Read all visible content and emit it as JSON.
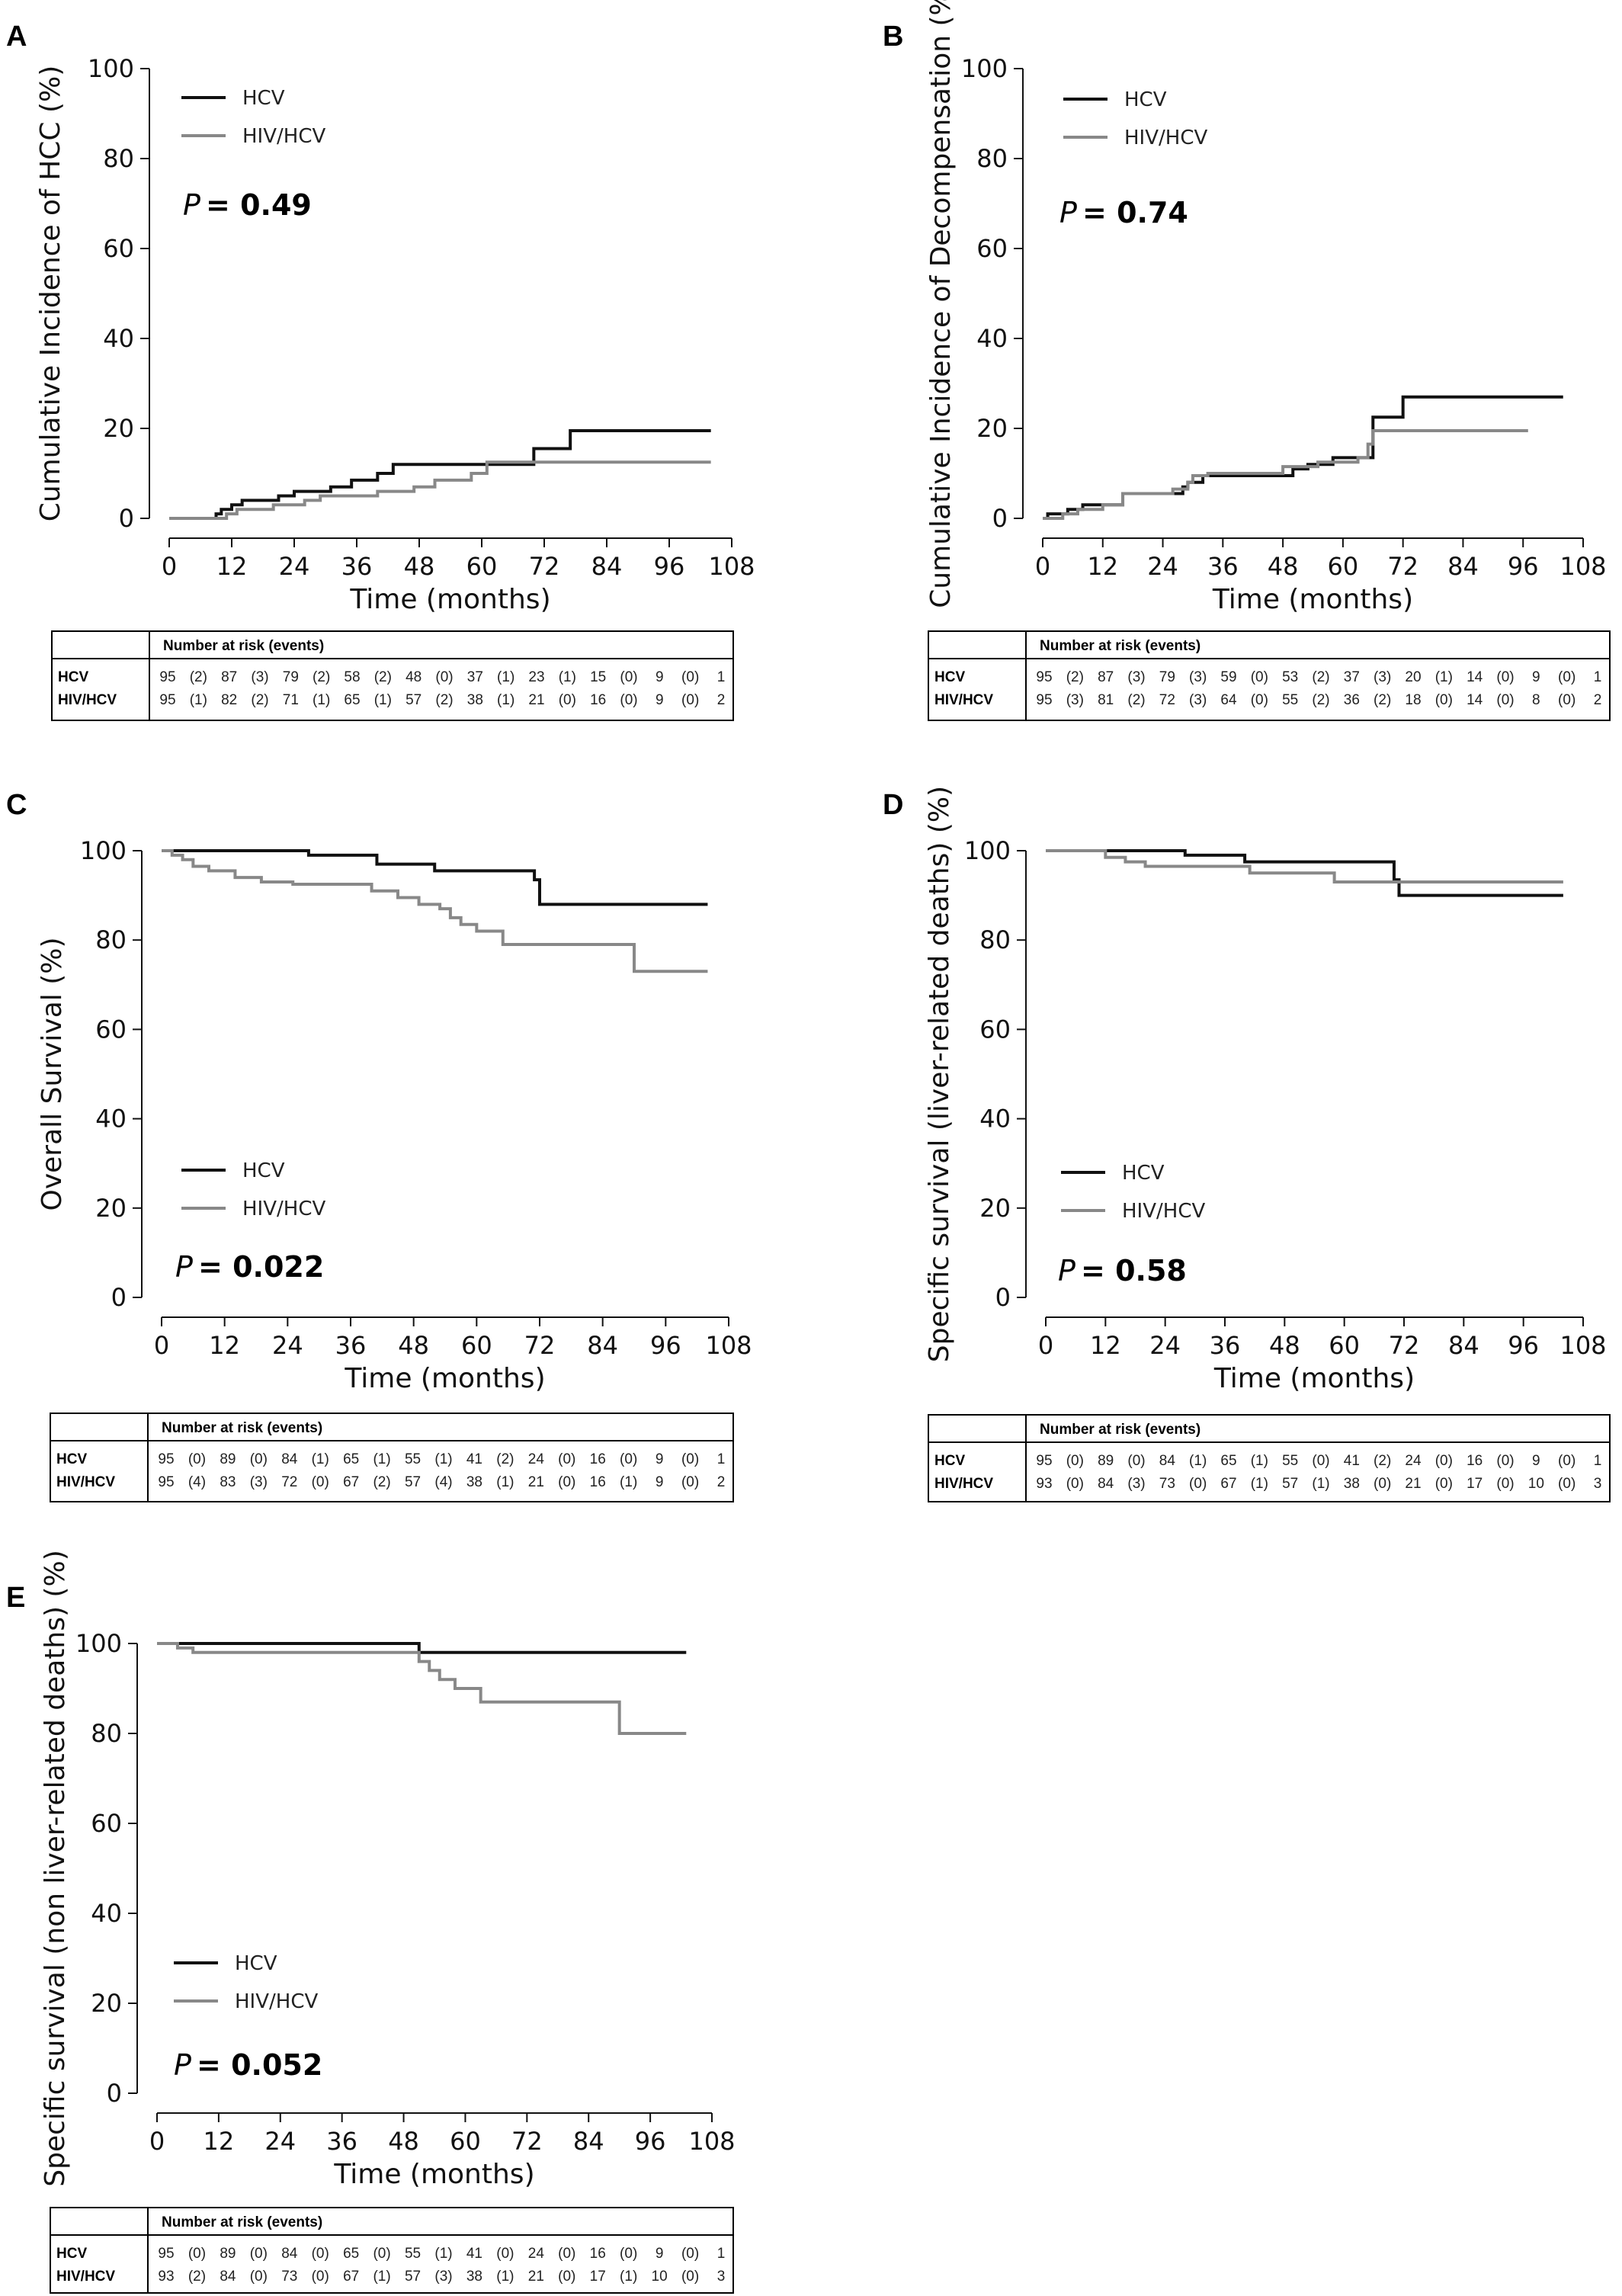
{
  "colors": {
    "hcv": "#111111",
    "hiv_hcv": "#888888",
    "axis": "#111111"
  },
  "x_axis": {
    "ticks": [
      0,
      12,
      24,
      36,
      48,
      60,
      72,
      84,
      96,
      108
    ],
    "label": "Time (months)",
    "range": [
      0,
      108
    ]
  },
  "y_axis": {
    "ticks": [
      0,
      20,
      40,
      60,
      80,
      100
    ],
    "range": [
      0,
      100
    ]
  },
  "risk_table": {
    "title": "Number at risk (events)",
    "group_labels": [
      "HCV",
      "HIV/HCV"
    ]
  },
  "chart_data": [
    {
      "type": "line",
      "letter": "A",
      "ylabel": "Cumulative Incidence of HCC (%)",
      "legend": [
        "HCV",
        "HIV/HCV"
      ],
      "p_label": "P",
      "p_value": "= 0.49",
      "series": [
        {
          "name": "HCV",
          "x": [
            0,
            9,
            10,
            12,
            14,
            21,
            24,
            31,
            35,
            40,
            43,
            48,
            60,
            70,
            77,
            104
          ],
          "y": [
            0,
            1,
            2,
            3,
            4,
            5,
            6,
            7,
            8.5,
            10,
            12,
            12,
            12,
            15.5,
            19.5,
            19.5
          ]
        },
        {
          "name": "HIV/HCV",
          "x": [
            0,
            11,
            13,
            20,
            26,
            29,
            40,
            47,
            51,
            58,
            61,
            104
          ],
          "y": [
            0,
            1,
            2,
            3,
            4,
            5,
            6,
            7,
            8.5,
            10,
            12.5,
            12.5
          ]
        }
      ],
      "risk": [
        {
          "group": "HCV",
          "values": [
            "95",
            "(2)",
            "87",
            "(3)",
            "79",
            "(2)",
            "58",
            "(2)",
            "48",
            "(0)",
            "37",
            "(1)",
            "23",
            "(1)",
            "15",
            "(0)",
            "9",
            "(0)",
            "1"
          ]
        },
        {
          "group": "HIV/HCV",
          "values": [
            "95",
            "(1)",
            "82",
            "(2)",
            "71",
            "(1)",
            "65",
            "(1)",
            "57",
            "(2)",
            "38",
            "(1)",
            "21",
            "(0)",
            "16",
            "(0)",
            "9",
            "(0)",
            "2"
          ]
        }
      ]
    },
    {
      "type": "line",
      "letter": "B",
      "ylabel": "Cumulative Incidence of Decompensation (%)",
      "legend": [
        "HCV",
        "HIV/HCV"
      ],
      "p_label": "P",
      "p_value": "= 0.74",
      "series": [
        {
          "name": "HCV",
          "x": [
            0,
            1,
            5,
            8,
            16,
            28,
            29,
            32,
            50,
            53,
            58,
            64,
            66,
            72,
            104
          ],
          "y": [
            0,
            1,
            2,
            3,
            5.5,
            7,
            8,
            9.5,
            11,
            12,
            13.5,
            13.5,
            22.5,
            27,
            27
          ]
        },
        {
          "name": "HIV/HCV",
          "x": [
            0,
            4,
            7,
            12,
            16,
            26,
            29,
            30,
            33,
            48,
            55,
            63,
            65,
            66,
            97
          ],
          "y": [
            0,
            1,
            2,
            3,
            5.5,
            6.5,
            8,
            9.5,
            10,
            11.5,
            12.5,
            13.5,
            16.5,
            19.5,
            19.5
          ]
        }
      ],
      "risk": [
        {
          "group": "HCV",
          "values": [
            "95",
            "(2)",
            "87",
            "(3)",
            "79",
            "(3)",
            "59",
            "(0)",
            "53",
            "(2)",
            "37",
            "(3)",
            "20",
            "(1)",
            "14",
            "(0)",
            "9",
            "(0)",
            "1"
          ]
        },
        {
          "group": "HIV/HCV",
          "values": [
            "95",
            "(3)",
            "81",
            "(2)",
            "72",
            "(3)",
            "64",
            "(0)",
            "55",
            "(2)",
            "36",
            "(2)",
            "18",
            "(0)",
            "14",
            "(0)",
            "8",
            "(0)",
            "2"
          ]
        }
      ]
    },
    {
      "type": "line",
      "letter": "C",
      "ylabel": "Overall Survival (%)",
      "legend": [
        "HCV",
        "HIV/HCV"
      ],
      "p_label": "P",
      "p_value": "= 0.022",
      "series": [
        {
          "name": "HCV",
          "x": [
            0,
            28,
            41,
            52,
            71,
            72,
            104
          ],
          "y": [
            100,
            99,
            97,
            95.5,
            93.5,
            88,
            88
          ]
        },
        {
          "name": "HIV/HCV",
          "x": [
            0,
            2,
            4,
            6,
            9,
            14,
            19,
            25,
            40,
            45,
            49,
            53,
            55,
            57,
            60,
            65,
            88,
            90,
            104
          ],
          "y": [
            100,
            99,
            98,
            96.5,
            95.5,
            94,
            93,
            92.5,
            91,
            89.5,
            88,
            87,
            85,
            83.5,
            82,
            79,
            79,
            73,
            73
          ]
        }
      ],
      "risk": [
        {
          "group": "HCV",
          "values": [
            "95",
            "(0)",
            "89",
            "(0)",
            "84",
            "(1)",
            "65",
            "(1)",
            "55",
            "(1)",
            "41",
            "(2)",
            "24",
            "(0)",
            "16",
            "(0)",
            "9",
            "(0)",
            "1"
          ]
        },
        {
          "group": "HIV/HCV",
          "values": [
            "95",
            "(4)",
            "83",
            "(3)",
            "72",
            "(0)",
            "67",
            "(2)",
            "57",
            "(4)",
            "38",
            "(1)",
            "21",
            "(0)",
            "16",
            "(1)",
            "9",
            "(0)",
            "2"
          ]
        }
      ]
    },
    {
      "type": "line",
      "letter": "D",
      "ylabel": "Specific survival (liver-related deaths) (%)",
      "legend": [
        "HCV",
        "HIV/HCV"
      ],
      "p_label": "P",
      "p_value": "= 0.58",
      "series": [
        {
          "name": "HCV",
          "x": [
            0,
            28,
            40,
            70,
            71,
            104
          ],
          "y": [
            100,
            99,
            97.5,
            93.5,
            90,
            90
          ]
        },
        {
          "name": "HIV/HCV",
          "x": [
            0,
            12,
            16,
            20,
            41,
            58,
            104
          ],
          "y": [
            100,
            98.5,
            97.5,
            96.5,
            95,
            93,
            93
          ]
        }
      ],
      "risk": [
        {
          "group": "HCV",
          "values": [
            "95",
            "(0)",
            "89",
            "(0)",
            "84",
            "(1)",
            "65",
            "(1)",
            "55",
            "(0)",
            "41",
            "(2)",
            "24",
            "(0)",
            "16",
            "(0)",
            "9",
            "(0)",
            "1"
          ]
        },
        {
          "group": "HIV/HCV",
          "values": [
            "93",
            "(0)",
            "84",
            "(3)",
            "73",
            "(0)",
            "67",
            "(1)",
            "57",
            "(1)",
            "38",
            "(0)",
            "21",
            "(0)",
            "17",
            "(0)",
            "10",
            "(0)",
            "3"
          ]
        }
      ]
    },
    {
      "type": "line",
      "letter": "E",
      "ylabel": "Specific survival (non liver-related deaths) (%)",
      "legend": [
        "HCV",
        "HIV/HCV"
      ],
      "p_label": "P",
      "p_value": "= 0.052",
      "series": [
        {
          "name": "HCV",
          "x": [
            4,
            51,
            103
          ],
          "y": [
            100,
            98,
            98
          ]
        },
        {
          "name": "HIV/HCV",
          "x": [
            0,
            4,
            7,
            51,
            53,
            55,
            58,
            63,
            68,
            90,
            103
          ],
          "y": [
            100,
            99,
            98,
            96,
            94,
            92,
            90,
            87,
            87,
            80,
            80
          ]
        }
      ],
      "risk": [
        {
          "group": "HCV",
          "values": [
            "95",
            "(0)",
            "89",
            "(0)",
            "84",
            "(0)",
            "65",
            "(0)",
            "55",
            "(1)",
            "41",
            "(0)",
            "24",
            "(0)",
            "16",
            "(0)",
            "9",
            "(0)",
            "1"
          ]
        },
        {
          "group": "HIV/HCV",
          "values": [
            "93",
            "(2)",
            "84",
            "(0)",
            "73",
            "(0)",
            "67",
            "(1)",
            "57",
            "(3)",
            "38",
            "(1)",
            "21",
            "(0)",
            "17",
            "(1)",
            "10",
            "(0)",
            "3"
          ]
        }
      ]
    }
  ]
}
